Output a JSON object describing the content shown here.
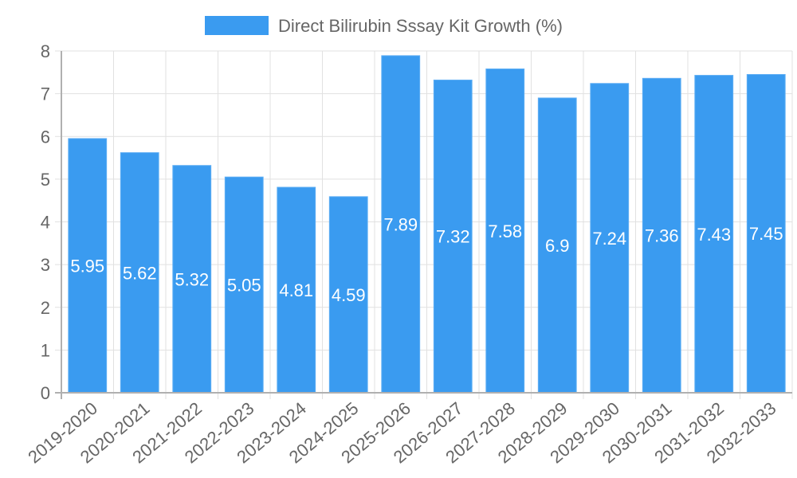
{
  "legend": {
    "label": "Direct Bilirubin Sssay Kit Growth (%)",
    "color": "#3a9bf0"
  },
  "colors": {
    "bar_fill": "#3a9bf0",
    "bar_border": "#5eaef4",
    "grid": "#e1e1e1",
    "axis": "#b0b0b0",
    "text": "#666666",
    "label": "#ffffff"
  },
  "chart_data": {
    "type": "bar",
    "title": "",
    "xlabel": "",
    "ylabel": "",
    "ylim": [
      0,
      8
    ],
    "yticks": [
      0,
      1,
      2,
      3,
      4,
      5,
      6,
      7,
      8
    ],
    "grid": true,
    "legend_position": "top",
    "categories": [
      "2019-2020",
      "2020-2021",
      "2021-2022",
      "2022-2023",
      "2023-2024",
      "2024-2025",
      "2025-2026",
      "2026-2027",
      "2027-2028",
      "2028-2029",
      "2029-2030",
      "2030-2031",
      "2031-2032",
      "2032-2033"
    ],
    "series": [
      {
        "name": "Direct Bilirubin Sssay Kit Growth (%)",
        "values": [
          5.95,
          5.62,
          5.32,
          5.05,
          4.81,
          4.59,
          7.89,
          7.32,
          7.58,
          6.9,
          7.24,
          7.36,
          7.43,
          7.45
        ]
      }
    ],
    "data_labels": [
      "5.95",
      "5.62",
      "5.32",
      "5.05",
      "4.81",
      "4.59",
      "7.89",
      "7.32",
      "7.58",
      "6.9",
      "7.24",
      "7.36",
      "7.43",
      "7.45"
    ]
  }
}
